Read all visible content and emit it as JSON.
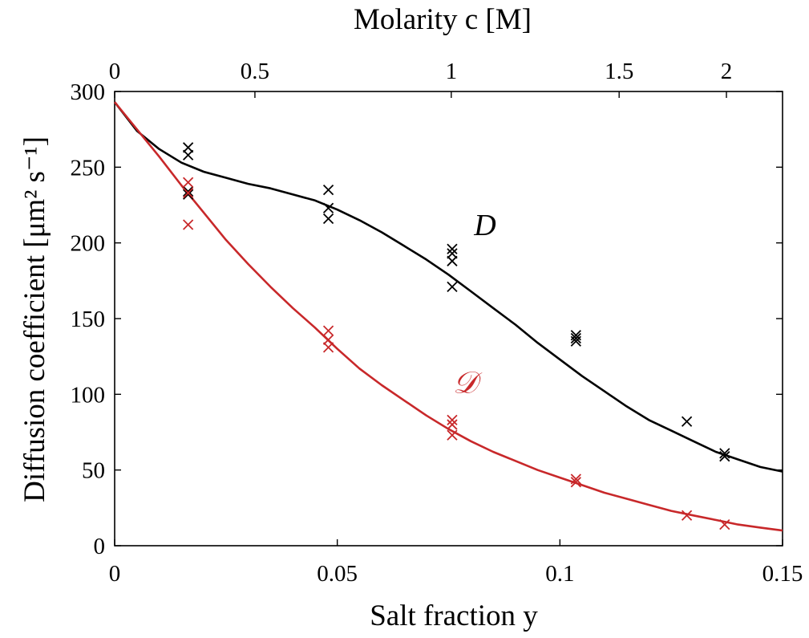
{
  "chart_data": {
    "type": "scatter",
    "xlabel": "Salt fraction y",
    "ylabel": "Diffusion coefficient [μm² s⁻¹]",
    "x2label": "Molarity c [M]",
    "xlim": [
      0,
      0.15
    ],
    "ylim": [
      0,
      300
    ],
    "x_ticks": [
      "0",
      "0.05",
      "0.1",
      "0.15"
    ],
    "y_ticks": [
      "0",
      "50",
      "100",
      "150",
      "200",
      "250",
      "300"
    ],
    "x2_ticks": [
      "0",
      "0.5",
      "1",
      "1.5",
      "2"
    ],
    "x2_tick_positions_y": [
      0,
      0.0315,
      0.0756,
      0.1133,
      0.1374
    ],
    "grid": false,
    "series": [
      {
        "name": "D",
        "color": "#000000",
        "points": [
          {
            "x": 0.0165,
            "y": 263
          },
          {
            "x": 0.0165,
            "y": 258
          },
          {
            "x": 0.0165,
            "y": 234
          },
          {
            "x": 0.0165,
            "y": 232
          },
          {
            "x": 0.048,
            "y": 235
          },
          {
            "x": 0.048,
            "y": 223
          },
          {
            "x": 0.048,
            "y": 216
          },
          {
            "x": 0.0758,
            "y": 196
          },
          {
            "x": 0.0758,
            "y": 193
          },
          {
            "x": 0.0758,
            "y": 188
          },
          {
            "x": 0.0758,
            "y": 171
          },
          {
            "x": 0.1036,
            "y": 139
          },
          {
            "x": 0.1036,
            "y": 137
          },
          {
            "x": 0.1036,
            "y": 135
          },
          {
            "x": 0.1285,
            "y": 82
          },
          {
            "x": 0.137,
            "y": 61
          },
          {
            "x": 0.137,
            "y": 59
          }
        ],
        "curve": [
          [
            0,
            293
          ],
          [
            0.005,
            274
          ],
          [
            0.01,
            262
          ],
          [
            0.015,
            253
          ],
          [
            0.02,
            247
          ],
          [
            0.025,
            243
          ],
          [
            0.03,
            239
          ],
          [
            0.035,
            236
          ],
          [
            0.04,
            232
          ],
          [
            0.045,
            228
          ],
          [
            0.05,
            222
          ],
          [
            0.055,
            215
          ],
          [
            0.06,
            207
          ],
          [
            0.065,
            198
          ],
          [
            0.07,
            189
          ],
          [
            0.075,
            179
          ],
          [
            0.08,
            168
          ],
          [
            0.085,
            157
          ],
          [
            0.09,
            146
          ],
          [
            0.095,
            134
          ],
          [
            0.1,
            123
          ],
          [
            0.105,
            112
          ],
          [
            0.11,
            102
          ],
          [
            0.115,
            92
          ],
          [
            0.12,
            83
          ],
          [
            0.125,
            76
          ],
          [
            0.13,
            69
          ],
          [
            0.135,
            62
          ],
          [
            0.14,
            57
          ],
          [
            0.145,
            52
          ],
          [
            0.15,
            49
          ]
        ]
      },
      {
        "name": "𝒟",
        "color": "#c8282a",
        "points": [
          {
            "x": 0.0165,
            "y": 240
          },
          {
            "x": 0.0165,
            "y": 233
          },
          {
            "x": 0.0165,
            "y": 212
          },
          {
            "x": 0.048,
            "y": 142
          },
          {
            "x": 0.048,
            "y": 136
          },
          {
            "x": 0.048,
            "y": 131
          },
          {
            "x": 0.0758,
            "y": 83
          },
          {
            "x": 0.0758,
            "y": 80
          },
          {
            "x": 0.0758,
            "y": 73
          },
          {
            "x": 0.1036,
            "y": 44
          },
          {
            "x": 0.1036,
            "y": 42
          },
          {
            "x": 0.1285,
            "y": 20
          },
          {
            "x": 0.137,
            "y": 14
          }
        ],
        "curve": [
          [
            0,
            293
          ],
          [
            0.005,
            275
          ],
          [
            0.01,
            257
          ],
          [
            0.015,
            238
          ],
          [
            0.02,
            220
          ],
          [
            0.025,
            202
          ],
          [
            0.03,
            186
          ],
          [
            0.035,
            171
          ],
          [
            0.04,
            157
          ],
          [
            0.045,
            144
          ],
          [
            0.05,
            130
          ],
          [
            0.055,
            117
          ],
          [
            0.06,
            106
          ],
          [
            0.065,
            96
          ],
          [
            0.07,
            86
          ],
          [
            0.075,
            77
          ],
          [
            0.08,
            69
          ],
          [
            0.085,
            62
          ],
          [
            0.09,
            56
          ],
          [
            0.095,
            50
          ],
          [
            0.1,
            45
          ],
          [
            0.105,
            40
          ],
          [
            0.11,
            35
          ],
          [
            0.115,
            31
          ],
          [
            0.12,
            27
          ],
          [
            0.125,
            23
          ],
          [
            0.13,
            20
          ],
          [
            0.135,
            17
          ],
          [
            0.14,
            14
          ],
          [
            0.145,
            12
          ],
          [
            0.15,
            10
          ]
        ]
      }
    ],
    "annotations": [
      {
        "text": "D",
        "x": 0.0832,
        "y": 205,
        "color": "#000000"
      },
      {
        "text": "𝒟",
        "x": 0.0787,
        "y": 101,
        "color": "#c8282a"
      }
    ]
  }
}
